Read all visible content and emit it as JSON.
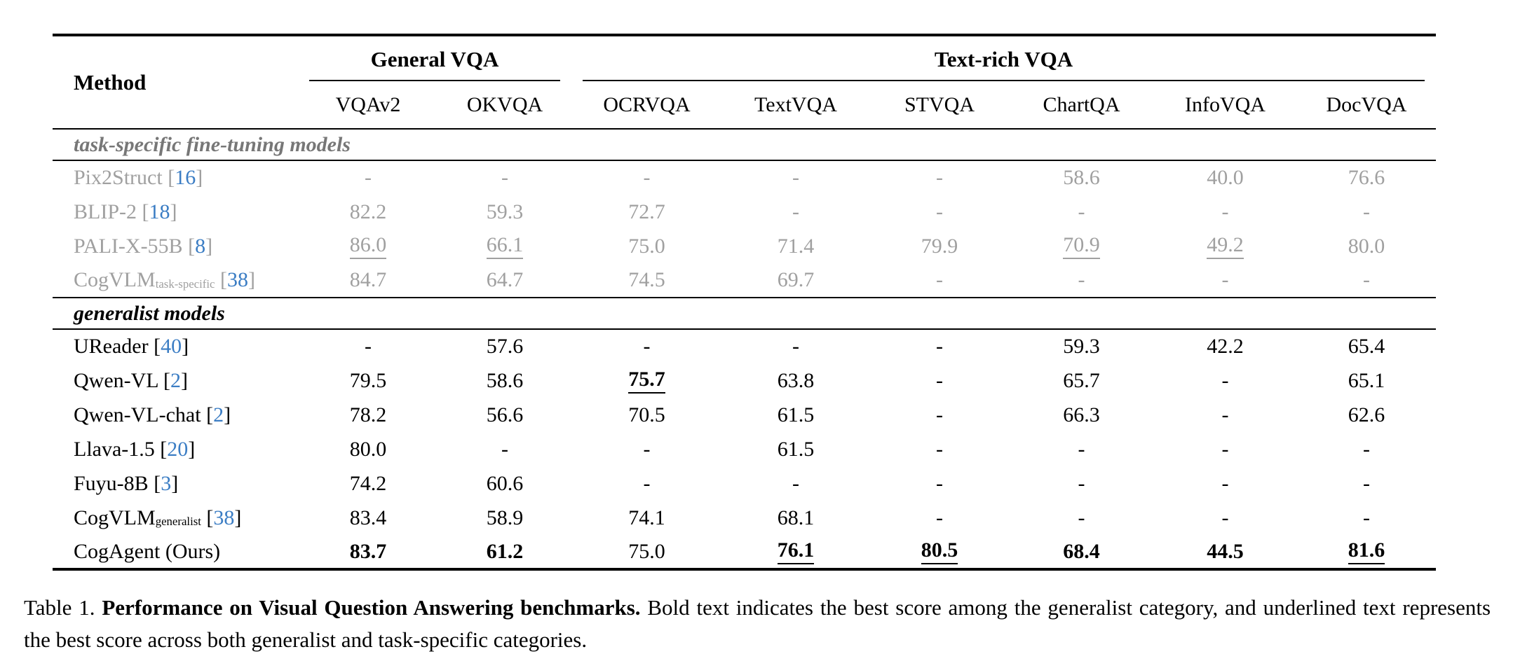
{
  "table": {
    "method_header": "Method",
    "groups": [
      {
        "label": "General VQA",
        "span": 2
      },
      {
        "label": "Text-rich VQA",
        "span": 6
      }
    ],
    "columns": [
      "VQAv2",
      "OKVQA",
      "OCRVQA",
      "TextVQA",
      "STVQA",
      "ChartQA",
      "InfoVQA",
      "DocVQA"
    ],
    "sections": [
      {
        "title": "task-specific fine-tuning models",
        "muted": true,
        "rows": [
          {
            "method": "Pix2Struct",
            "sub": "",
            "cite": "16",
            "cells": [
              {
                "v": "-"
              },
              {
                "v": "-"
              },
              {
                "v": "-"
              },
              {
                "v": "-"
              },
              {
                "v": "-"
              },
              {
                "v": "58.6"
              },
              {
                "v": "40.0"
              },
              {
                "v": "76.6"
              }
            ]
          },
          {
            "method": "BLIP-2",
            "sub": "",
            "cite": "18",
            "cells": [
              {
                "v": "82.2"
              },
              {
                "v": "59.3"
              },
              {
                "v": "72.7"
              },
              {
                "v": "-"
              },
              {
                "v": "-"
              },
              {
                "v": "-"
              },
              {
                "v": "-"
              },
              {
                "v": "-"
              }
            ]
          },
          {
            "method": "PALI-X-55B",
            "sub": "",
            "cite": "8",
            "cells": [
              {
                "v": "86.0",
                "u": true
              },
              {
                "v": "66.1",
                "u": true
              },
              {
                "v": "75.0"
              },
              {
                "v": "71.4"
              },
              {
                "v": "79.9"
              },
              {
                "v": "70.9",
                "u": true
              },
              {
                "v": "49.2",
                "u": true
              },
              {
                "v": "80.0"
              }
            ]
          },
          {
            "method": "CogVLM",
            "sub": "task-specific",
            "cite": "38",
            "cells": [
              {
                "v": "84.7"
              },
              {
                "v": "64.7"
              },
              {
                "v": "74.5"
              },
              {
                "v": "69.7"
              },
              {
                "v": "-"
              },
              {
                "v": "-"
              },
              {
                "v": "-"
              },
              {
                "v": "-"
              }
            ]
          }
        ]
      },
      {
        "title": "generalist models",
        "muted": false,
        "rows": [
          {
            "method": "UReader",
            "sub": "",
            "cite": "40",
            "cells": [
              {
                "v": "-"
              },
              {
                "v": "57.6"
              },
              {
                "v": "-"
              },
              {
                "v": "-"
              },
              {
                "v": "-"
              },
              {
                "v": "59.3"
              },
              {
                "v": "42.2"
              },
              {
                "v": "65.4"
              }
            ]
          },
          {
            "method": "Qwen-VL",
            "sub": "",
            "cite": "2",
            "cells": [
              {
                "v": "79.5"
              },
              {
                "v": "58.6"
              },
              {
                "v": "75.7",
                "b": true,
                "u": true
              },
              {
                "v": "63.8"
              },
              {
                "v": "-"
              },
              {
                "v": "65.7"
              },
              {
                "v": "-"
              },
              {
                "v": "65.1"
              }
            ]
          },
          {
            "method": "Qwen-VL-chat",
            "sub": "",
            "cite": "2",
            "cells": [
              {
                "v": "78.2"
              },
              {
                "v": "56.6"
              },
              {
                "v": "70.5"
              },
              {
                "v": "61.5"
              },
              {
                "v": "-"
              },
              {
                "v": "66.3"
              },
              {
                "v": "-"
              },
              {
                "v": "62.6"
              }
            ]
          },
          {
            "method": "Llava-1.5",
            "sub": "",
            "cite": "20",
            "cells": [
              {
                "v": "80.0"
              },
              {
                "v": "-"
              },
              {
                "v": "-"
              },
              {
                "v": "61.5"
              },
              {
                "v": "-"
              },
              {
                "v": "-"
              },
              {
                "v": "-"
              },
              {
                "v": "-"
              }
            ]
          },
          {
            "method": "Fuyu-8B",
            "sub": "",
            "cite": "3",
            "cells": [
              {
                "v": "74.2"
              },
              {
                "v": "60.6"
              },
              {
                "v": "-"
              },
              {
                "v": "-"
              },
              {
                "v": "-"
              },
              {
                "v": "-"
              },
              {
                "v": "-"
              },
              {
                "v": "-"
              }
            ]
          },
          {
            "method": "CogVLM",
            "sub": "generalist",
            "cite": "38",
            "cells": [
              {
                "v": "83.4"
              },
              {
                "v": "58.9"
              },
              {
                "v": "74.1"
              },
              {
                "v": "68.1"
              },
              {
                "v": "-"
              },
              {
                "v": "-"
              },
              {
                "v": "-"
              },
              {
                "v": "-"
              }
            ]
          },
          {
            "method": "CogAgent (Ours)",
            "sub": "",
            "cite": "",
            "cells": [
              {
                "v": "83.7",
                "b": true
              },
              {
                "v": "61.2",
                "b": true
              },
              {
                "v": "75.0"
              },
              {
                "v": "76.1",
                "b": true,
                "u": true
              },
              {
                "v": "80.5",
                "b": true,
                "u": true
              },
              {
                "v": "68.4",
                "b": true
              },
              {
                "v": "44.5",
                "b": true
              },
              {
                "v": "81.6",
                "b": true,
                "u": true
              }
            ]
          }
        ]
      }
    ]
  },
  "caption": {
    "prefix": "Table 1.",
    "bold": "Performance on Visual Question Answering benchmarks.",
    "rest": "Bold text indicates the best score among the generalist category, and underlined text represents the best score across both generalist and task-specific categories."
  },
  "colors": {
    "citation_blue": "#3b7dc4",
    "muted_row_gray": "#a0a0a0",
    "section_title_gray": "#777777",
    "text": "#000000",
    "rule": "#000000"
  }
}
